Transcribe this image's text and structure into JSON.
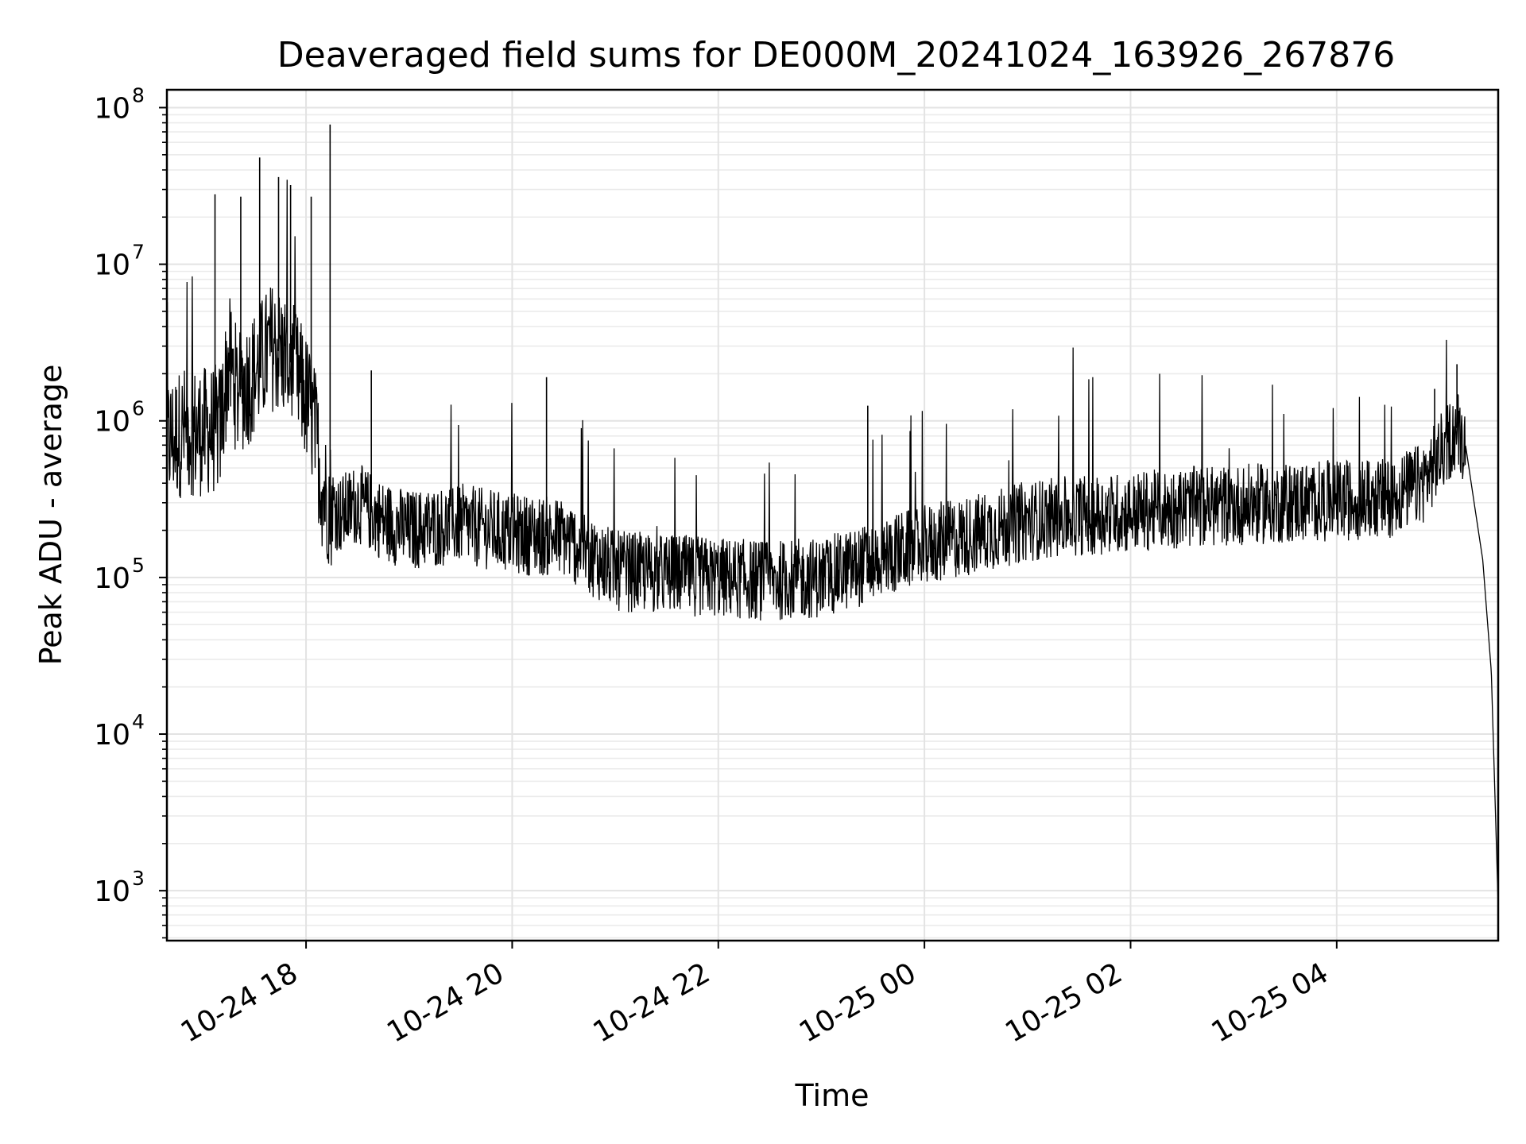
{
  "chart_data": {
    "type": "line",
    "title": "Deaveraged field sums for DE000M_20241024_163926_267876",
    "xlabel": "Time",
    "ylabel": "Peak ADU - average",
    "yscale": "log",
    "ylim": [
      480,
      130000000
    ],
    "xlim": [
      "2024-10-24 16:39",
      "2024-10-25 05:34"
    ],
    "grid": true,
    "x_tick_labels": [
      "10-24 18",
      "10-24 20",
      "10-24 22",
      "10-25 00",
      "10-25 02",
      "10-25 04"
    ],
    "x_tick_times": [
      "2024-10-24 18:00",
      "2024-10-24 20:00",
      "2024-10-24 22:00",
      "2024-10-25 00:00",
      "2024-10-25 02:00",
      "2024-10-25 04:00"
    ],
    "y_tick_labels": [
      {
        "base": "10",
        "exp": "3",
        "value": 1000
      },
      {
        "base": "10",
        "exp": "4",
        "value": 10000
      },
      {
        "base": "10",
        "exp": "5",
        "value": 100000
      },
      {
        "base": "10",
        "exp": "6",
        "value": 1000000
      },
      {
        "base": "10",
        "exp": "7",
        "value": 10000000
      },
      {
        "base": "10",
        "exp": "8",
        "value": 100000000
      }
    ],
    "series": [
      {
        "color": "#000000",
        "points": [
          [
            "2024-10-24 16:40",
            750000
          ],
          [
            "2024-10-24 16:50",
            880000
          ],
          [
            "2024-10-24 17:00",
            850000
          ],
          [
            "2024-10-24 17:10",
            900000
          ],
          [
            "2024-10-24 17:15",
            2500000
          ],
          [
            "2024-10-24 17:20",
            1500000
          ],
          [
            "2024-10-24 17:30",
            2000000
          ],
          [
            "2024-10-24 17:40",
            3000000
          ],
          [
            "2024-10-24 17:50",
            2500000
          ],
          [
            "2024-10-24 18:00",
            1400000
          ],
          [
            "2024-10-24 18:05",
            900000
          ],
          [
            "2024-10-24 18:10",
            350000
          ],
          [
            "2024-10-24 18:20",
            250000
          ],
          [
            "2024-10-24 18:30",
            300000
          ],
          [
            "2024-10-24 18:45",
            230000
          ],
          [
            "2024-10-24 19:00",
            200000
          ],
          [
            "2024-10-24 19:30",
            220000
          ],
          [
            "2024-10-24 20:00",
            190000
          ],
          [
            "2024-10-24 20:30",
            180000
          ],
          [
            "2024-10-24 20:50",
            130000
          ],
          [
            "2024-10-24 21:00",
            110000
          ],
          [
            "2024-10-24 21:30",
            105000
          ],
          [
            "2024-10-24 22:00",
            100000
          ],
          [
            "2024-10-24 22:30",
            95000
          ],
          [
            "2024-10-24 23:00",
            100000
          ],
          [
            "2024-10-24 23:20",
            115000
          ],
          [
            "2024-10-24 23:40",
            140000
          ],
          [
            "2024-10-25 00:00",
            160000
          ],
          [
            "2024-10-25 00:30",
            190000
          ],
          [
            "2024-10-25 01:00",
            230000
          ],
          [
            "2024-10-25 01:30",
            250000
          ],
          [
            "2024-10-25 02:00",
            260000
          ],
          [
            "2024-10-25 02:30",
            280000
          ],
          [
            "2024-10-25 03:00",
            290000
          ],
          [
            "2024-10-25 03:30",
            300000
          ],
          [
            "2024-10-25 04:00",
            310000
          ],
          [
            "2024-10-25 04:30",
            320000
          ],
          [
            "2024-10-25 04:50",
            400000
          ],
          [
            "2024-10-25 05:00",
            600000
          ],
          [
            "2024-10-25 05:10",
            900000
          ],
          [
            "2024-10-25 05:15",
            700000
          ],
          [
            "2024-10-25 05:20",
            300000
          ],
          [
            "2024-10-25 05:25",
            130000
          ],
          [
            "2024-10-25 05:30",
            25000
          ],
          [
            "2024-10-25 05:34",
            800
          ]
        ],
        "spikes": [
          [
            "2024-10-24 17:07",
            28000000
          ],
          [
            "2024-10-24 17:22",
            27000000
          ],
          [
            "2024-10-24 17:33",
            48000000
          ],
          [
            "2024-10-24 17:44",
            36000000
          ],
          [
            "2024-10-24 17:51",
            32000000
          ],
          [
            "2024-10-24 18:03",
            27000000
          ],
          [
            "2024-10-24 18:14",
            78000000
          ],
          [
            "2024-10-24 18:38",
            2100000
          ],
          [
            "2024-10-24 20:20",
            1900000
          ],
          [
            "2024-10-24 23:27",
            1250000
          ],
          [
            "2024-10-25 04:57",
            1600000
          ],
          [
            "2024-10-25 05:10",
            2300000
          ]
        ]
      }
    ]
  }
}
